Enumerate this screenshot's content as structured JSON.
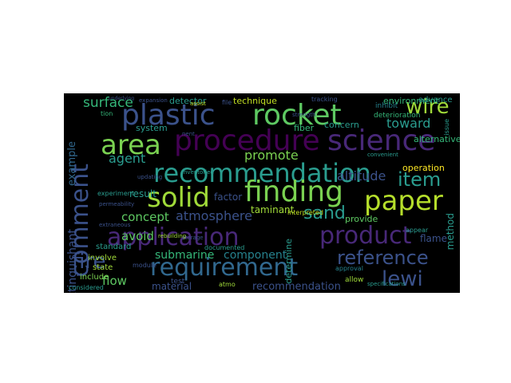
{
  "word_cloud": {
    "background": "#000000",
    "words": [
      {
        "text": "plastic",
        "color": "#3b528b"
      },
      {
        "text": "rocket",
        "color": "#5ec962"
      },
      {
        "text": "procedure",
        "color": "#440154"
      },
      {
        "text": "science",
        "color": "#482878"
      },
      {
        "text": "area",
        "color": "#7ad151"
      },
      {
        "text": "recommendation",
        "color": "#2a9d8f"
      },
      {
        "text": "solid",
        "color": "#a0da39"
      },
      {
        "text": "finding",
        "color": "#7ad151"
      },
      {
        "text": "paper",
        "color": "#b5de2b"
      },
      {
        "text": "application",
        "color": "#482878"
      },
      {
        "text": "product",
        "color": "#482878"
      },
      {
        "text": "requirement",
        "color": "#31688e"
      },
      {
        "text": "comment",
        "color": "#3b528b"
      },
      {
        "text": "wire",
        "color": "#a0da39"
      },
      {
        "text": "item",
        "color": "#2a9d8f"
      },
      {
        "text": "reference",
        "color": "#3b528b"
      },
      {
        "text": "lewi",
        "color": "#3b528b"
      },
      {
        "text": "fire",
        "color": "#3b528b"
      },
      {
        "text": "sand",
        "color": "#2a9d8f"
      },
      {
        "text": "surface",
        "color": "#35b779"
      },
      {
        "text": "agent",
        "color": "#2a9d8f"
      },
      {
        "text": "promote",
        "color": "#7ad151"
      },
      {
        "text": "altitude",
        "color": "#3b528b"
      },
      {
        "text": "toward",
        "color": "#2a9d8f"
      },
      {
        "text": "atmosphere",
        "color": "#3b528b"
      },
      {
        "text": "concept",
        "color": "#5ec962"
      },
      {
        "text": "avoid",
        "color": "#5ec962"
      },
      {
        "text": "flow",
        "color": "#5ec962"
      },
      {
        "text": "submarine",
        "color": "#35b779"
      },
      {
        "text": "component",
        "color": "#26828e"
      },
      {
        "text": "extinguishant",
        "color": "#3b528b"
      },
      {
        "text": "example",
        "color": "#31688e"
      },
      {
        "text": "detector",
        "color": "#2a9d8f"
      },
      {
        "text": "technique",
        "color": "#c2df23"
      },
      {
        "text": "fiber",
        "color": "#35b779"
      },
      {
        "text": "concern",
        "color": "#2a9d8f"
      },
      {
        "text": "operation",
        "color": "#fde725"
      },
      {
        "text": "result",
        "color": "#2a9d8f"
      },
      {
        "text": "factor",
        "color": "#3b528b"
      },
      {
        "text": "taminant",
        "color": "#a0da39"
      },
      {
        "text": "method",
        "color": "#2a9d8f"
      },
      {
        "text": "flame",
        "color": "#3b528b"
      },
      {
        "text": "provide",
        "color": "#5ec962"
      },
      {
        "text": "determine",
        "color": "#2a9d8f"
      },
      {
        "text": "material",
        "color": "#3b528b"
      },
      {
        "text": "recommendation",
        "color": "#3b528b"
      },
      {
        "text": "involve",
        "color": "#a0da39"
      },
      {
        "text": "state",
        "color": "#a0da39"
      },
      {
        "text": "standard",
        "color": "#2a9d8f"
      },
      {
        "text": "include",
        "color": "#7ad151"
      },
      {
        "text": "environment",
        "color": "#35b779"
      },
      {
        "text": "advance",
        "color": "#2a9d8f"
      },
      {
        "text": "alternative",
        "color": "#35b779"
      },
      {
        "text": "inhibit",
        "color": "#26828e"
      },
      {
        "text": "deterioration",
        "color": "#35b779"
      },
      {
        "text": "system",
        "color": "#2a9d8f"
      },
      {
        "text": "experiment",
        "color": "#2a9d8f"
      },
      {
        "text": "test",
        "color": "#3b528b"
      },
      {
        "text": "allow",
        "color": "#a0da39"
      },
      {
        "text": "approval",
        "color": "#26828e"
      },
      {
        "text": "interpreted",
        "color": "#c2df23"
      },
      {
        "text": "appear",
        "color": "#2a9d8f"
      },
      {
        "text": "tracking",
        "color": "#3b528b"
      },
      {
        "text": "tion",
        "color": "#35b779"
      },
      {
        "text": "assist",
        "color": "#c2df23"
      },
      {
        "text": "strength",
        "color": "#3b528b"
      },
      {
        "text": "documented",
        "color": "#2a9d8f"
      },
      {
        "text": "atmo",
        "color": "#a0da39"
      },
      {
        "text": "module",
        "color": "#3b528b"
      },
      {
        "text": "considered",
        "color": "#2a9d8f"
      },
      {
        "text": "specifications",
        "color": "#2a9d8f"
      },
      {
        "text": "expansion",
        "color": "#3b528b"
      },
      {
        "text": "issue",
        "color": "#2a9d8f"
      },
      {
        "text": "file",
        "color": "#3b528b"
      },
      {
        "text": "inventoried",
        "color": "#2a9d8f"
      },
      {
        "text": "convenient",
        "color": "#2a9d8f"
      },
      {
        "text": "updating",
        "color": "#3b528b"
      },
      {
        "text": "nent",
        "color": "#3b528b"
      },
      {
        "text": "storage",
        "color": "#3b528b"
      },
      {
        "text": "permeability",
        "color": "#3b528b"
      },
      {
        "text": "extraneous",
        "color": "#3b528b"
      },
      {
        "text": "underlying",
        "color": "#3b528b"
      },
      {
        "text": "rebuilding",
        "color": "#a0da39"
      }
    ]
  }
}
